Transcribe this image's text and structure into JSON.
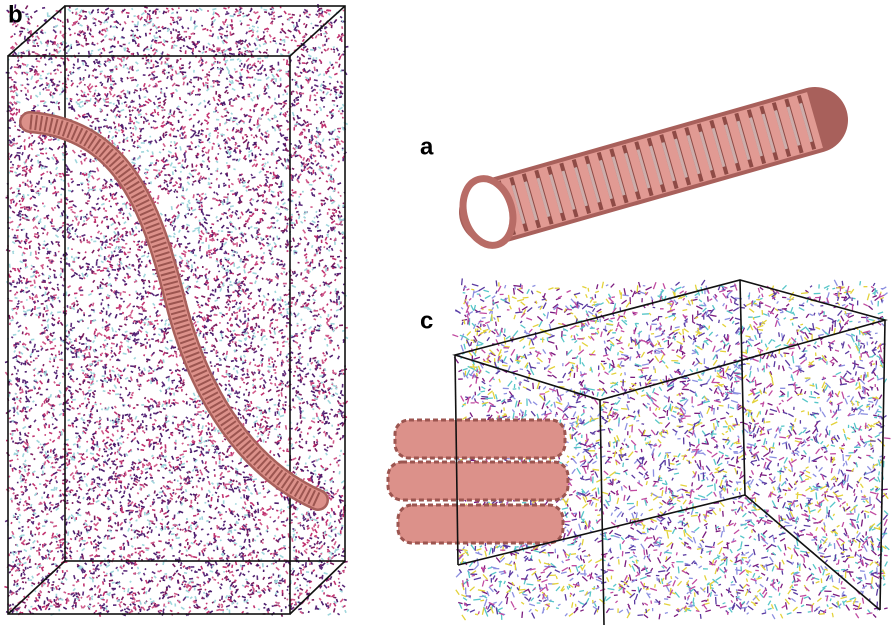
{
  "panels": [
    {
      "label": "b"
    },
    {
      "label": "a"
    },
    {
      "label": "c"
    }
  ]
}
